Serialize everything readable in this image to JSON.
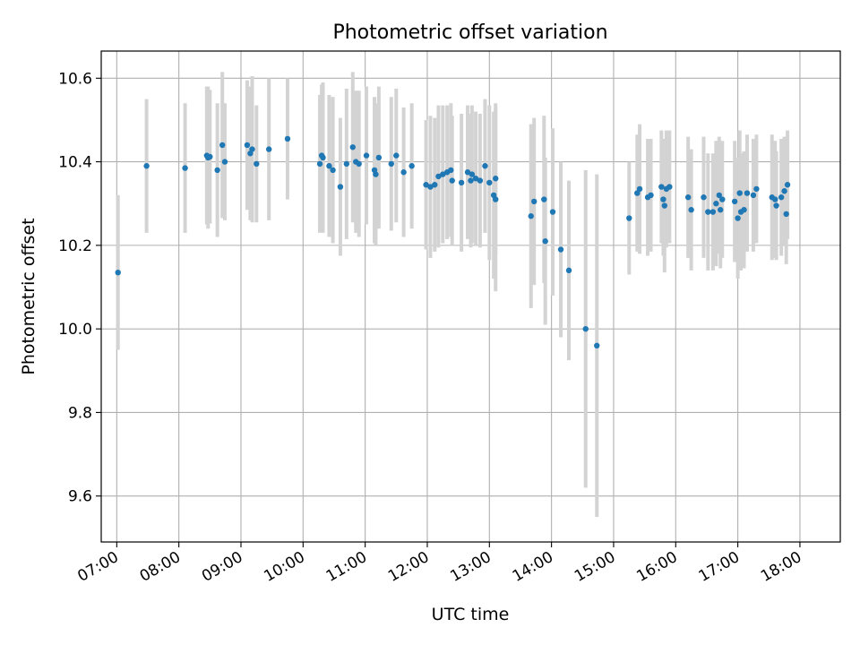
{
  "chart_data": {
    "type": "scatter",
    "title": "Photometric offset variation",
    "xlabel": "UTC time",
    "ylabel": "Photometric offset",
    "x_unit": "hours UTC (time of day)",
    "xlim": [
      6.75,
      18.65
    ],
    "ylim": [
      9.49,
      10.665
    ],
    "x_ticks": [
      7,
      8,
      9,
      10,
      11,
      12,
      13,
      14,
      15,
      16,
      17,
      18
    ],
    "x_tick_labels": [
      "07:00",
      "08:00",
      "09:00",
      "10:00",
      "11:00",
      "12:00",
      "13:00",
      "14:00",
      "15:00",
      "16:00",
      "17:00",
      "18:00"
    ],
    "y_ticks": [
      9.6,
      9.8,
      10.0,
      10.2,
      10.4,
      10.6
    ],
    "y_tick_labels": [
      "9.6",
      "9.8",
      "10.0",
      "10.2",
      "10.4",
      "10.6"
    ],
    "grid": true,
    "colors": {
      "point": "#1f77b4",
      "errorbar": "#d3d3d3",
      "grid": "#b0b0b0"
    },
    "series": [
      {
        "points": [
          [
            7.02,
            10.135,
            0.185
          ],
          [
            7.48,
            10.39,
            0.16
          ],
          [
            8.1,
            10.385,
            0.155
          ],
          [
            8.45,
            10.415,
            0.165
          ],
          [
            8.47,
            10.41,
            0.17
          ],
          [
            8.5,
            10.412,
            0.16
          ],
          [
            8.62,
            10.38,
            0.16
          ],
          [
            8.7,
            10.44,
            0.175
          ],
          [
            8.74,
            10.4,
            0.14
          ],
          [
            9.1,
            10.44,
            0.155
          ],
          [
            9.15,
            10.42,
            0.16
          ],
          [
            9.18,
            10.43,
            0.175
          ],
          [
            9.25,
            10.395,
            0.14
          ],
          [
            9.45,
            10.43,
            0.17
          ],
          [
            9.75,
            10.455,
            0.145
          ],
          [
            10.27,
            10.395,
            0.165
          ],
          [
            10.3,
            10.415,
            0.17
          ],
          [
            10.32,
            10.41,
            0.18
          ],
          [
            10.42,
            10.39,
            0.17
          ],
          [
            10.48,
            10.38,
            0.175
          ],
          [
            10.6,
            10.34,
            0.165
          ],
          [
            10.7,
            10.395,
            0.18
          ],
          [
            10.8,
            10.435,
            0.18
          ],
          [
            10.85,
            10.4,
            0.17
          ],
          [
            10.9,
            10.395,
            0.175
          ],
          [
            11.02,
            10.415,
            0.165
          ],
          [
            11.15,
            10.38,
            0.175
          ],
          [
            11.17,
            10.37,
            0.17
          ],
          [
            11.22,
            10.41,
            0.17
          ],
          [
            11.42,
            10.395,
            0.16
          ],
          [
            11.5,
            10.415,
            0.16
          ],
          [
            11.62,
            10.375,
            0.155
          ],
          [
            11.75,
            10.39,
            0.15
          ],
          [
            11.98,
            10.345,
            0.155
          ],
          [
            12.05,
            10.34,
            0.17
          ],
          [
            12.12,
            10.345,
            0.16
          ],
          [
            12.18,
            10.365,
            0.17
          ],
          [
            12.25,
            10.37,
            0.165
          ],
          [
            12.32,
            10.375,
            0.16
          ],
          [
            12.38,
            10.38,
            0.16
          ],
          [
            12.4,
            10.355,
            0.155
          ],
          [
            12.55,
            10.35,
            0.165
          ],
          [
            12.65,
            10.375,
            0.16
          ],
          [
            12.7,
            10.355,
            0.16
          ],
          [
            12.72,
            10.37,
            0.165
          ],
          [
            12.78,
            10.36,
            0.16
          ],
          [
            12.85,
            10.355,
            0.16
          ],
          [
            12.93,
            10.39,
            0.16
          ],
          [
            13.0,
            10.35,
            0.185
          ],
          [
            13.07,
            10.32,
            0.2
          ],
          [
            13.1,
            10.31,
            0.22
          ],
          [
            13.1,
            10.36,
            0.18
          ],
          [
            13.67,
            10.27,
            0.22
          ],
          [
            13.72,
            10.305,
            0.2
          ],
          [
            13.88,
            10.31,
            0.2
          ],
          [
            13.9,
            10.21,
            0.2
          ],
          [
            14.02,
            10.28,
            0.2
          ],
          [
            14.15,
            10.19,
            0.21
          ],
          [
            14.28,
            10.14,
            0.215
          ],
          [
            14.55,
            10.0,
            0.38
          ],
          [
            14.73,
            9.96,
            0.41
          ],
          [
            15.25,
            10.265,
            0.135
          ],
          [
            15.38,
            10.325,
            0.14
          ],
          [
            15.42,
            10.335,
            0.155
          ],
          [
            15.55,
            10.315,
            0.14
          ],
          [
            15.6,
            10.32,
            0.135
          ],
          [
            15.77,
            10.34,
            0.135
          ],
          [
            15.8,
            10.31,
            0.135
          ],
          [
            15.82,
            10.295,
            0.16
          ],
          [
            15.85,
            10.335,
            0.14
          ],
          [
            15.9,
            10.34,
            0.135
          ],
          [
            16.2,
            10.315,
            0.145
          ],
          [
            16.25,
            10.285,
            0.145
          ],
          [
            16.45,
            10.315,
            0.145
          ],
          [
            16.52,
            10.28,
            0.14
          ],
          [
            16.6,
            10.28,
            0.14
          ],
          [
            16.65,
            10.3,
            0.15
          ],
          [
            16.7,
            10.32,
            0.14
          ],
          [
            16.72,
            10.285,
            0.14
          ],
          [
            16.75,
            10.31,
            0.14
          ],
          [
            16.95,
            10.305,
            0.145
          ],
          [
            17.0,
            10.265,
            0.145
          ],
          [
            17.03,
            10.325,
            0.15
          ],
          [
            17.05,
            10.28,
            0.14
          ],
          [
            17.1,
            10.285,
            0.14
          ],
          [
            17.15,
            10.325,
            0.14
          ],
          [
            17.25,
            10.32,
            0.135
          ],
          [
            17.3,
            10.335,
            0.13
          ],
          [
            17.55,
            10.315,
            0.15
          ],
          [
            17.6,
            10.31,
            0.14
          ],
          [
            17.62,
            10.295,
            0.13
          ],
          [
            17.7,
            10.315,
            0.14
          ],
          [
            17.75,
            10.33,
            0.13
          ],
          [
            17.78,
            10.275,
            0.12
          ],
          [
            17.8,
            10.345,
            0.13
          ]
        ]
      }
    ]
  }
}
